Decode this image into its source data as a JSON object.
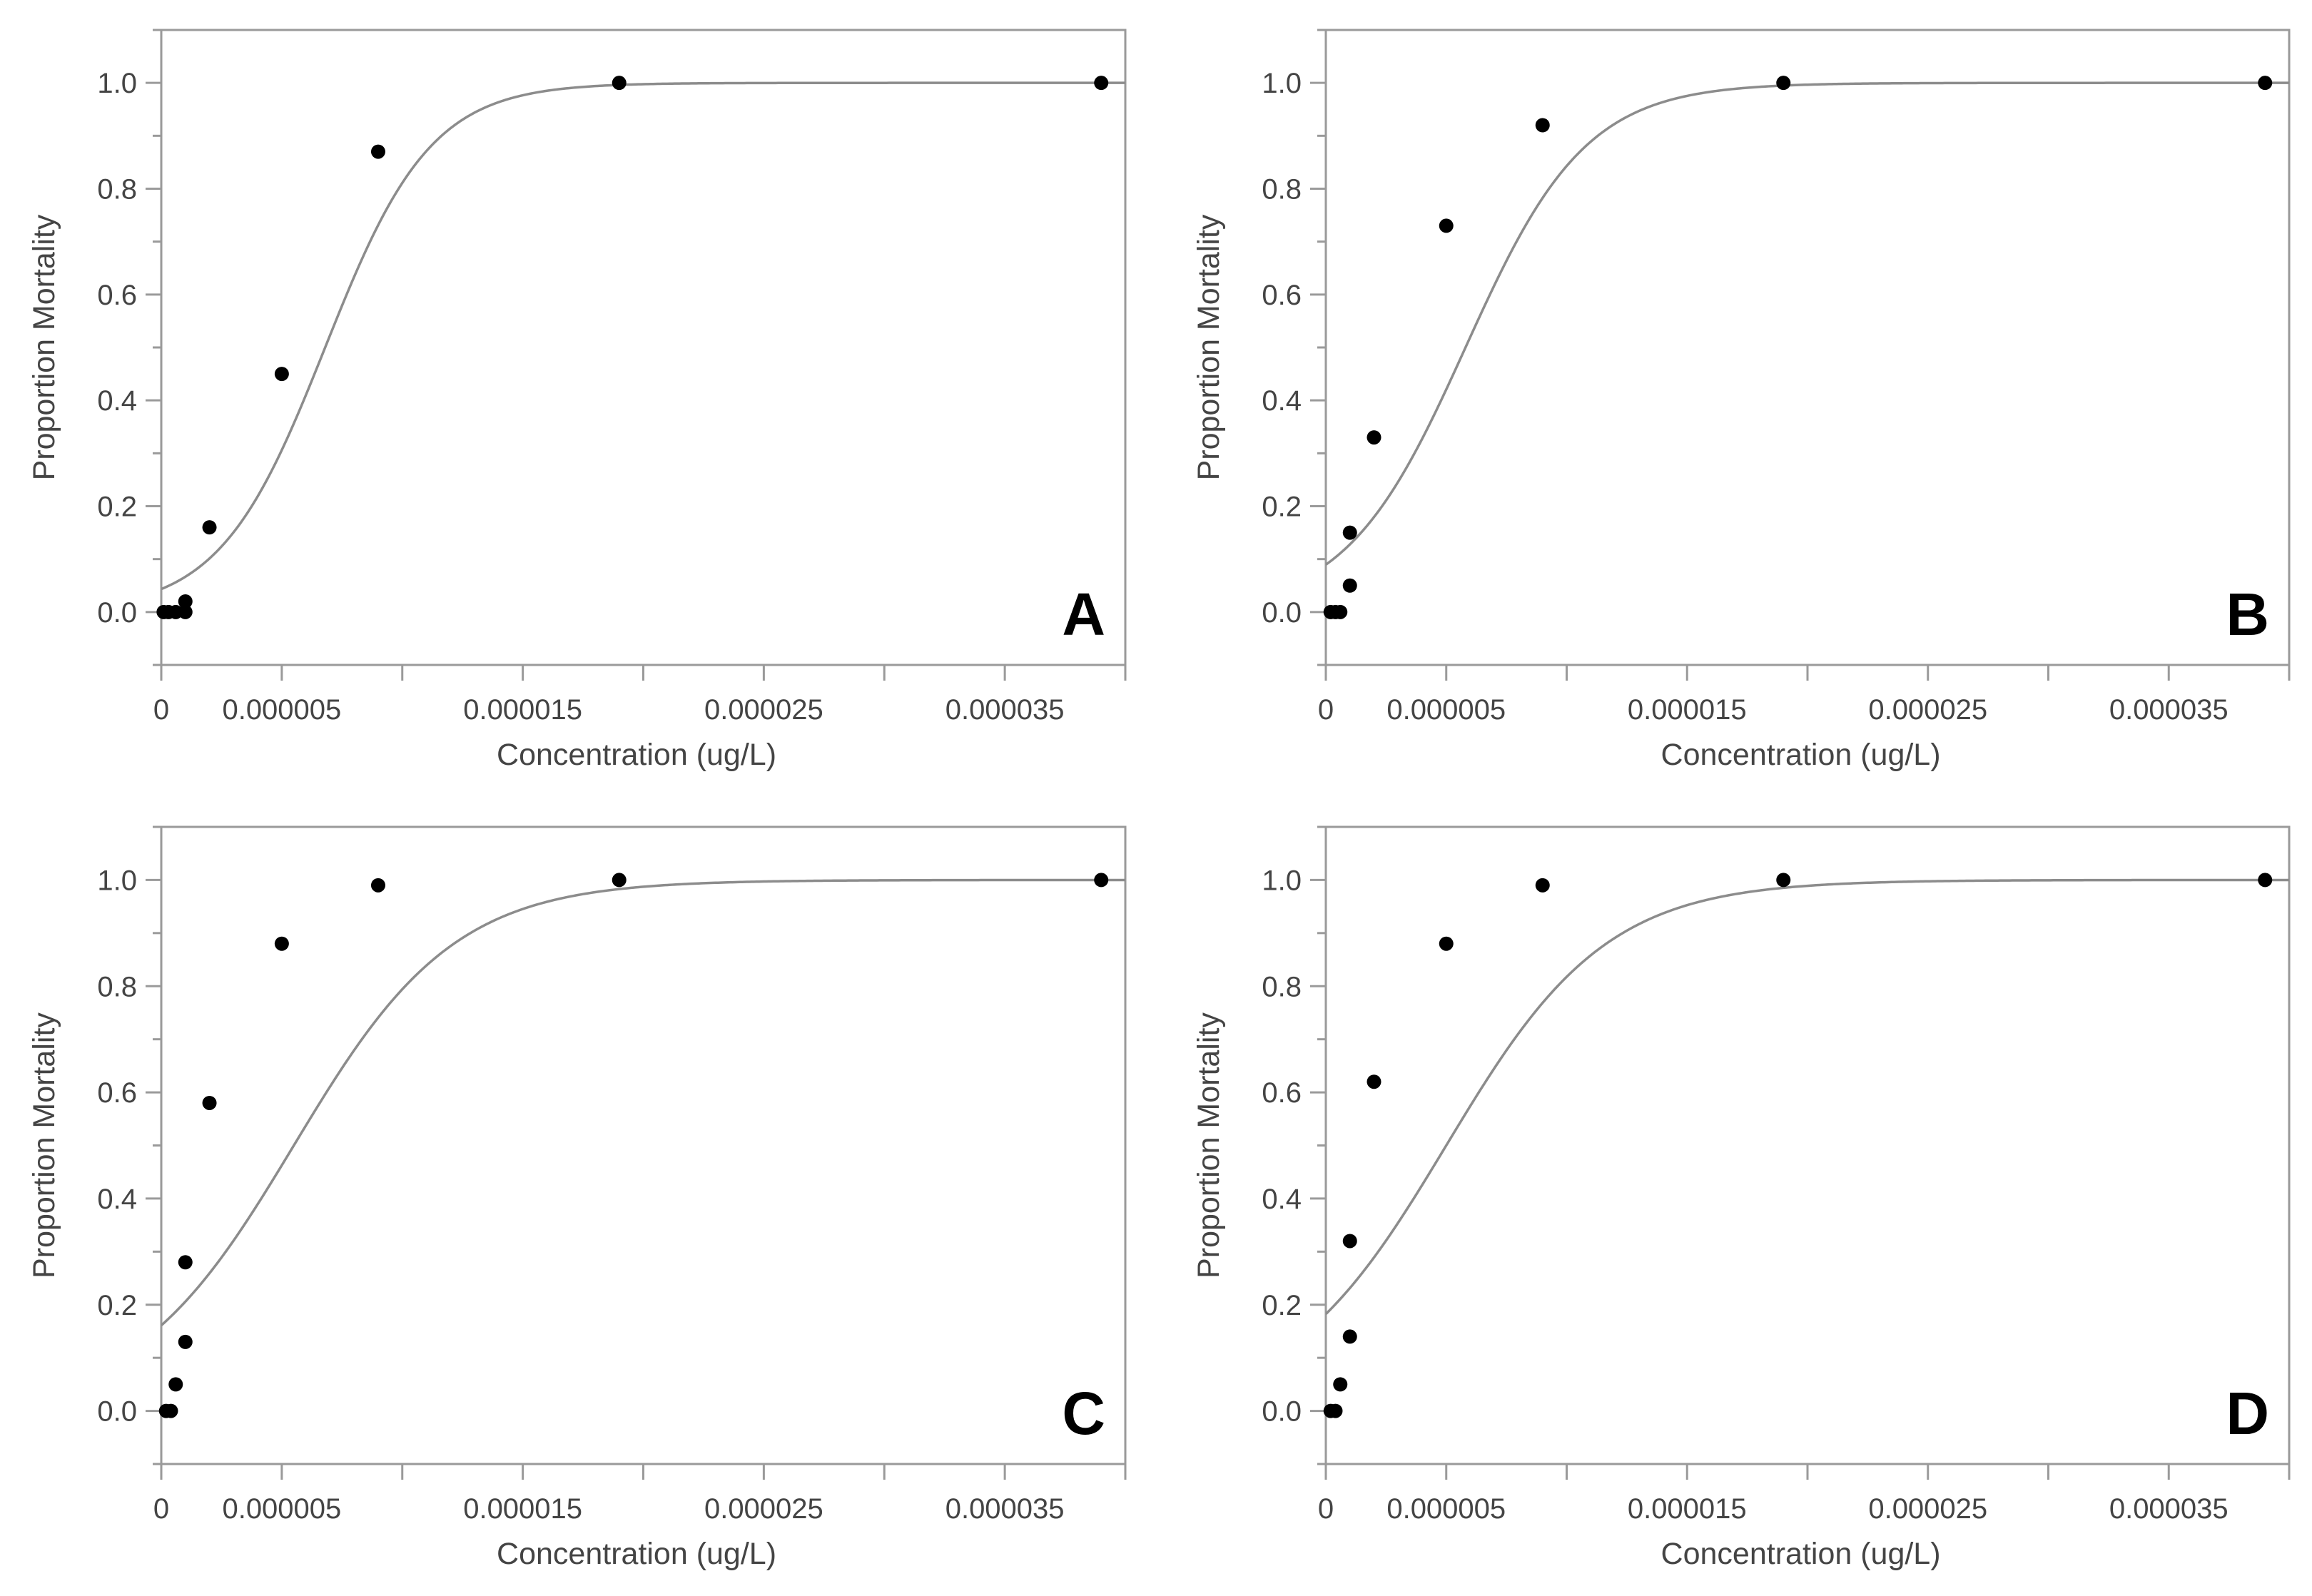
{
  "chart_data": [
    {
      "type": "scatter",
      "panel_label": "A",
      "xlabel": "Concentration (ug/L)",
      "ylabel": "Proportion Mortality",
      "xlim": [
        0,
        4e-05
      ],
      "ylim": [
        -0.1,
        1.1
      ],
      "x_tick_labels": [
        {
          "value": 0,
          "label": "0"
        },
        {
          "value": 5e-06,
          "label": "0.000005"
        },
        {
          "value": 1.5e-05,
          "label": "0.000015"
        },
        {
          "value": 2.5e-05,
          "label": "0.000025"
        },
        {
          "value": 3.5e-05,
          "label": "0.000035"
        }
      ],
      "x_minor_ticks": [
        1e-05,
        2e-05,
        3e-05,
        4e-05
      ],
      "y_ticks": [
        0.0,
        0.2,
        0.4,
        0.6,
        0.8,
        1.0
      ],
      "y_tick_labels": [
        "0.0",
        "0.2",
        "0.4",
        "0.6",
        "0.8",
        "1.0"
      ],
      "grid": false,
      "points": [
        {
          "x": 1e-07,
          "y": 0.0
        },
        {
          "x": 3e-07,
          "y": 0.0
        },
        {
          "x": 6e-07,
          "y": 0.0
        },
        {
          "x": 1e-06,
          "y": 0.0
        },
        {
          "x": 1e-06,
          "y": 0.02
        },
        {
          "x": 2e-06,
          "y": 0.16
        },
        {
          "x": 5e-06,
          "y": 0.45
        },
        {
          "x": 9e-06,
          "y": 0.87
        },
        {
          "x": 1.9e-05,
          "y": 1.0
        },
        {
          "x": 3.9e-05,
          "y": 1.0
        }
      ],
      "fit_curve": {
        "model": "logistic",
        "midpoint": 6.8e-06,
        "slope": 455000
      }
    },
    {
      "type": "scatter",
      "panel_label": "B",
      "xlabel": "Concentration (ug/L)",
      "ylabel": "Proportion Mortality",
      "xlim": [
        0,
        4e-05
      ],
      "ylim": [
        -0.1,
        1.1
      ],
      "x_tick_labels": [
        {
          "value": 0,
          "label": "0"
        },
        {
          "value": 5e-06,
          "label": "0.000005"
        },
        {
          "value": 1.5e-05,
          "label": "0.000015"
        },
        {
          "value": 2.5e-05,
          "label": "0.000025"
        },
        {
          "value": 3.5e-05,
          "label": "0.000035"
        }
      ],
      "x_minor_ticks": [
        1e-05,
        2e-05,
        3e-05,
        4e-05
      ],
      "y_ticks": [
        0.0,
        0.2,
        0.4,
        0.6,
        0.8,
        1.0
      ],
      "y_tick_labels": [
        "0.0",
        "0.2",
        "0.4",
        "0.6",
        "0.8",
        "1.0"
      ],
      "grid": false,
      "points": [
        {
          "x": 2e-07,
          "y": 0.0
        },
        {
          "x": 4e-07,
          "y": 0.0
        },
        {
          "x": 6e-07,
          "y": 0.0
        },
        {
          "x": 1e-06,
          "y": 0.05
        },
        {
          "x": 1e-06,
          "y": 0.15
        },
        {
          "x": 2e-06,
          "y": 0.33
        },
        {
          "x": 5e-06,
          "y": 0.73
        },
        {
          "x": 9e-06,
          "y": 0.92
        },
        {
          "x": 1.9e-05,
          "y": 1.0
        },
        {
          "x": 3.9e-05,
          "y": 1.0
        }
      ],
      "fit_curve": {
        "model": "logistic",
        "midpoint": 5.8e-06,
        "slope": 400000
      }
    },
    {
      "type": "scatter",
      "panel_label": "C",
      "xlabel": "Concentration (ug/L)",
      "ylabel": "Proportion Mortality",
      "xlim": [
        0,
        4e-05
      ],
      "ylim": [
        -0.1,
        1.1
      ],
      "x_tick_labels": [
        {
          "value": 0,
          "label": "0"
        },
        {
          "value": 5e-06,
          "label": "0.000005"
        },
        {
          "value": 1.5e-05,
          "label": "0.000015"
        },
        {
          "value": 2.5e-05,
          "label": "0.000025"
        },
        {
          "value": 3.5e-05,
          "label": "0.000035"
        }
      ],
      "x_minor_ticks": [
        1e-05,
        2e-05,
        3e-05,
        4e-05
      ],
      "y_ticks": [
        0.0,
        0.2,
        0.4,
        0.6,
        0.8,
        1.0
      ],
      "y_tick_labels": [
        "0.0",
        "0.2",
        "0.4",
        "0.6",
        "0.8",
        "1.0"
      ],
      "grid": false,
      "points": [
        {
          "x": 2e-07,
          "y": 0.0
        },
        {
          "x": 4e-07,
          "y": 0.0
        },
        {
          "x": 6e-07,
          "y": 0.05
        },
        {
          "x": 1e-06,
          "y": 0.13
        },
        {
          "x": 1e-06,
          "y": 0.28
        },
        {
          "x": 2e-06,
          "y": 0.58
        },
        {
          "x": 5e-06,
          "y": 0.88
        },
        {
          "x": 9e-06,
          "y": 0.99
        },
        {
          "x": 1.9e-05,
          "y": 1.0
        },
        {
          "x": 3.9e-05,
          "y": 1.0
        }
      ],
      "fit_curve": {
        "model": "logistic",
        "midpoint": 5.5e-06,
        "slope": 300000
      }
    },
    {
      "type": "scatter",
      "panel_label": "D",
      "xlabel": "Concentration (ug/L)",
      "ylabel": "Proportion Mortality",
      "xlim": [
        0,
        4e-05
      ],
      "ylim": [
        -0.1,
        1.1
      ],
      "x_tick_labels": [
        {
          "value": 0,
          "label": "0"
        },
        {
          "value": 5e-06,
          "label": "0.000005"
        },
        {
          "value": 1.5e-05,
          "label": "0.000015"
        },
        {
          "value": 2.5e-05,
          "label": "0.000025"
        },
        {
          "value": 3.5e-05,
          "label": "0.000035"
        }
      ],
      "x_minor_ticks": [
        1e-05,
        2e-05,
        3e-05,
        4e-05
      ],
      "y_ticks": [
        0.0,
        0.2,
        0.4,
        0.6,
        0.8,
        1.0
      ],
      "y_tick_labels": [
        "0.0",
        "0.2",
        "0.4",
        "0.6",
        "0.8",
        "1.0"
      ],
      "grid": false,
      "points": [
        {
          "x": 2e-07,
          "y": 0.0
        },
        {
          "x": 4e-07,
          "y": 0.0
        },
        {
          "x": 6e-07,
          "y": 0.05
        },
        {
          "x": 1e-06,
          "y": 0.14
        },
        {
          "x": 1e-06,
          "y": 0.32
        },
        {
          "x": 2e-06,
          "y": 0.62
        },
        {
          "x": 5e-06,
          "y": 0.88
        },
        {
          "x": 9e-06,
          "y": 0.99
        },
        {
          "x": 1.9e-05,
          "y": 1.0
        },
        {
          "x": 3.9e-05,
          "y": 1.0
        }
      ],
      "fit_curve": {
        "model": "logistic",
        "midpoint": 5e-06,
        "slope": 300000
      }
    }
  ]
}
